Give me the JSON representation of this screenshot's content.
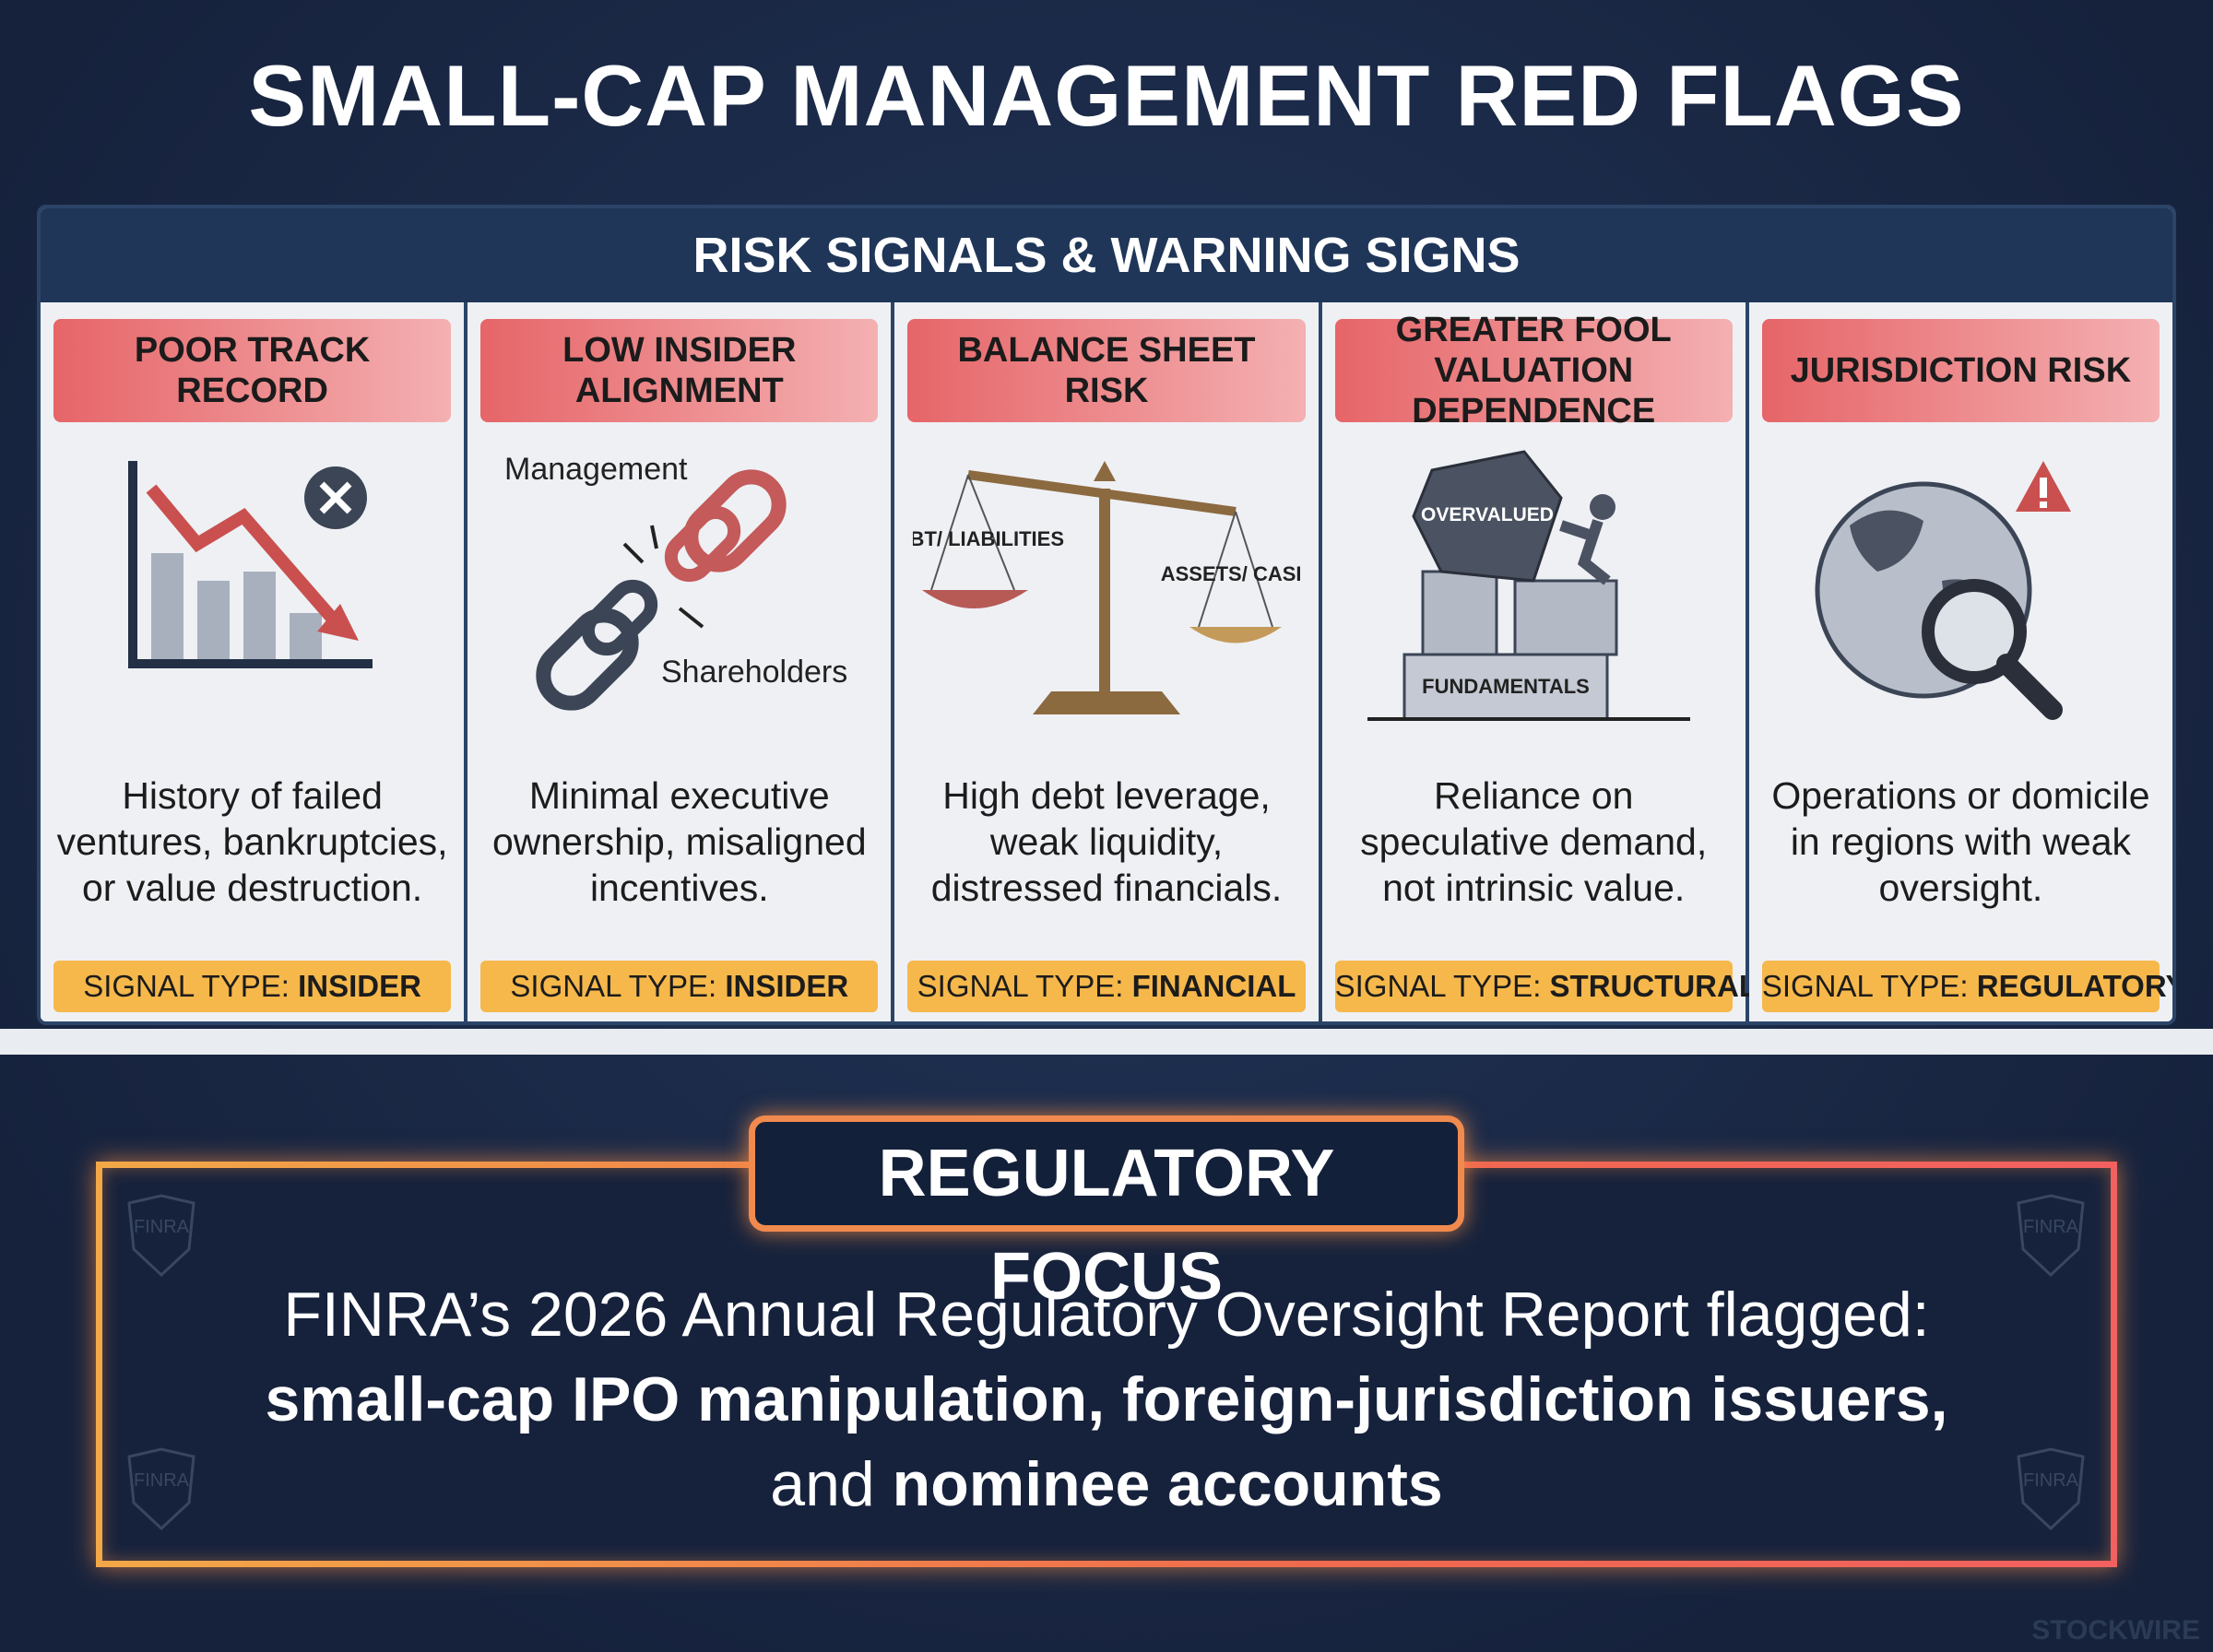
{
  "header": {
    "title": "SMALL-CAP MANAGEMENT RED FLAGS"
  },
  "panel": {
    "heading": "RISK SIGNALS & WARNING SIGNS"
  },
  "cards": [
    {
      "heading": "POOR TRACK RECORD",
      "icon_labels": [],
      "description": "History of failed ventures, bankruptcies, or value destruction.",
      "signal_label": "SIGNAL TYPE:",
      "signal_value": "INSIDER"
    },
    {
      "heading": "LOW INSIDER ALIGNMENT",
      "icon_labels": [
        "Management",
        "Shareholders"
      ],
      "description": "Minimal executive ownership, misaligned incentives.",
      "signal_label": "SIGNAL TYPE:",
      "signal_value": "INSIDER"
    },
    {
      "heading": "BALANCE SHEET RISK",
      "icon_labels": [
        "DEBT/ LIABILITIES",
        "ASSETS/ CASH"
      ],
      "description": "High debt leverage, weak liquidity, distressed financials.",
      "signal_label": "SIGNAL TYPE:",
      "signal_value": "FINANCIAL"
    },
    {
      "heading": "GREATER FOOL VALUATION DEPENDENCE",
      "icon_labels": [
        "OVERVALUED",
        "FUNDAMENTALS"
      ],
      "description": "Reliance on speculative demand, not intrinsic value.",
      "signal_label": "SIGNAL TYPE:",
      "signal_value": "STRUCTURAL"
    },
    {
      "heading": "JURISDICTION RISK",
      "icon_labels": [],
      "description": "Operations or domicile in regions with weak oversight.",
      "signal_label": "SIGNAL TYPE:",
      "signal_value": "REGULATORY"
    }
  ],
  "focus": {
    "heading": "REGULATORY FOCUS",
    "line1": "FINRA’s 2026 Annual Regulatory Oversight Report flagged:",
    "line2_bold": "small-cap IPO manipulation, foreign-jurisdiction issuers,",
    "line3_regular": "and",
    "line3_bold": "nominee accounts",
    "watermarks": [
      "FINRA",
      "FINRA",
      "FINRA",
      "FINRA"
    ]
  },
  "footer": {
    "brand": "STOCKWIRE"
  }
}
